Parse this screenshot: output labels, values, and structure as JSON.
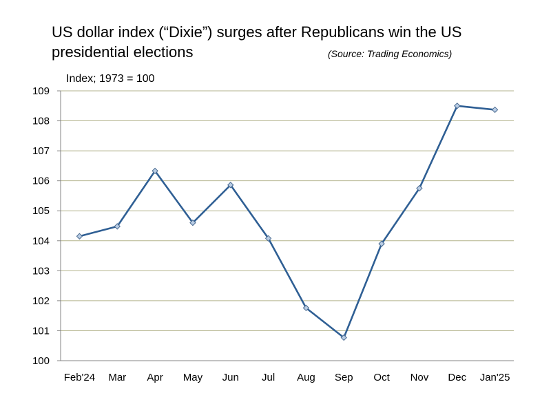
{
  "header": {
    "title_line_1": "US dollar index (“Dixie”) surges after Republicans win the US",
    "title_line_2": "presidential elections",
    "source": "(Source: Trading Economics)",
    "unit_label": "Index; 1973 = 100"
  },
  "chart_data": {
    "type": "line",
    "title": "US dollar index (“Dixie”) surges after Republicans win the US presidential elections",
    "ylabel": "Index; 1973 = 100",
    "xlabel": "",
    "categories": [
      "Feb'24",
      "Mar",
      "Apr",
      "May",
      "Jun",
      "Jul",
      "Aug",
      "Sep",
      "Oct",
      "Nov",
      "Dec",
      "Jan'25"
    ],
    "series": [
      {
        "values": [
          104.15,
          104.48,
          106.33,
          104.6,
          105.86,
          104.08,
          101.76,
          100.77,
          103.9,
          105.75,
          108.5,
          108.37
        ]
      }
    ],
    "ylim": [
      100,
      109
    ],
    "yticks": [
      100,
      101,
      102,
      103,
      104,
      105,
      106,
      107,
      108,
      109
    ],
    "grid": "horizontal",
    "legend": "none",
    "colors": {
      "line": "#2F5F94",
      "marker_fill": "#B9CDE5",
      "grid": "#B3B38C",
      "axis": "#868686"
    }
  }
}
